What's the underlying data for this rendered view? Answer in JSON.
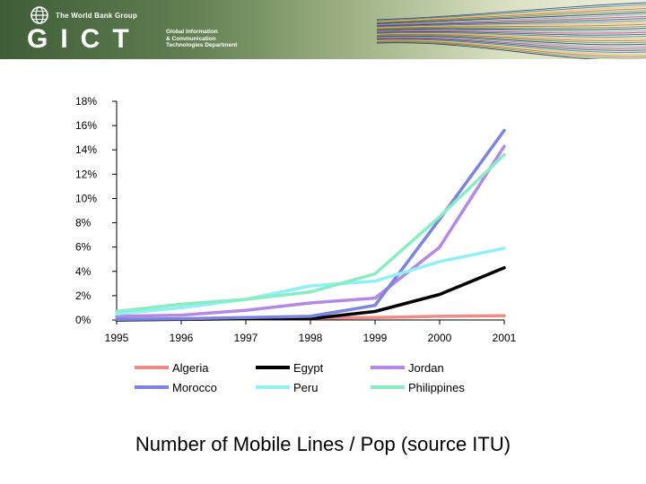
{
  "banner": {
    "org_name": "The World Bank Group",
    "acronym": "GICT",
    "department_lines": [
      "Global Information",
      "& Communication",
      "Technologies Department"
    ],
    "logo_icon": "globe-icon"
  },
  "caption": "Number of Mobile Lines / Pop (source ITU)",
  "chart_data": {
    "type": "line",
    "title": "",
    "xlabel": "",
    "ylabel": "",
    "x": [
      1995,
      1996,
      1997,
      1998,
      1999,
      2000,
      2001
    ],
    "x_tick_labels": [
      "1995",
      "1996",
      "1997",
      "1998",
      "1999",
      "2000",
      "2001"
    ],
    "y_tick_values": [
      0,
      2,
      4,
      6,
      8,
      10,
      12,
      14,
      16,
      18
    ],
    "y_tick_labels": [
      "0%",
      "2%",
      "4%",
      "6%",
      "8%",
      "10%",
      "12%",
      "14%",
      "16%",
      "18%"
    ],
    "ylim": [
      0,
      18
    ],
    "grid": false,
    "legend_position": "bottom",
    "series": [
      {
        "name": "Algeria",
        "color": "#f08a84",
        "values": [
          0.05,
          0.05,
          0.1,
          0.15,
          0.2,
          0.3,
          0.35
        ]
      },
      {
        "name": "Egypt",
        "color": "#000000",
        "values": [
          0.0,
          0.05,
          0.1,
          0.1,
          0.7,
          2.1,
          4.3
        ]
      },
      {
        "name": "Jordan",
        "color": "#b588e6",
        "values": [
          0.3,
          0.4,
          0.8,
          1.4,
          1.8,
          6.0,
          14.3
        ]
      },
      {
        "name": "Morocco",
        "color": "#7b84e0",
        "values": [
          0.05,
          0.1,
          0.2,
          0.3,
          1.2,
          8.3,
          15.6
        ]
      },
      {
        "name": "Peru",
        "color": "#8ff0f7",
        "values": [
          0.5,
          1.0,
          1.7,
          2.8,
          3.2,
          4.8,
          5.9
        ]
      },
      {
        "name": "Philippines",
        "color": "#86eec2",
        "values": [
          0.7,
          1.3,
          1.7,
          2.3,
          3.8,
          8.5,
          13.6
        ]
      }
    ]
  }
}
